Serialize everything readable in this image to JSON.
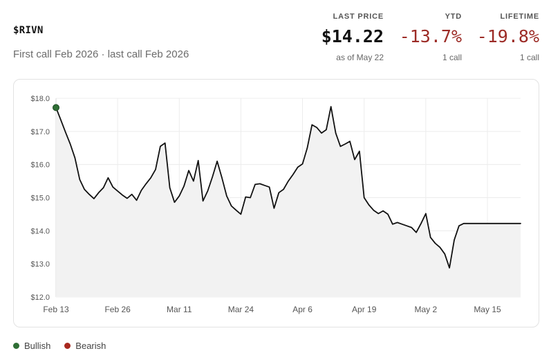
{
  "header": {
    "ticker": "$RIVN",
    "subtitle": "First call Feb 2026 · last call Feb 2026"
  },
  "stats": {
    "last_price": {
      "label": "LAST PRICE",
      "value": "$14.22",
      "note": "as of May 22"
    },
    "ytd": {
      "label": "YTD",
      "value": "-13.7%",
      "note": "1 call"
    },
    "lifetime": {
      "label": "LIFETIME",
      "value": "-19.8%",
      "note": "1 call"
    }
  },
  "legend": [
    {
      "label": "Bullish",
      "color": "#2f6e35"
    },
    {
      "label": "Bearish",
      "color": "#a8291f"
    }
  ],
  "chart_data": {
    "type": "area",
    "xlabel": "",
    "ylabel": "",
    "ylim": [
      12.0,
      18.0
    ],
    "yticks": [
      12.0,
      13.0,
      14.0,
      15.0,
      16.0,
      17.0,
      18.0
    ],
    "ytick_labels": [
      "$12.0",
      "$13.0",
      "$14.0",
      "$15.0",
      "$16.0",
      "$17.0",
      "$18.0"
    ],
    "xlim": [
      "2026-02-13",
      "2026-05-22"
    ],
    "xticks": [
      "2026-02-13",
      "2026-02-26",
      "2026-03-11",
      "2026-03-24",
      "2026-04-06",
      "2026-04-19",
      "2026-05-02",
      "2026-05-15"
    ],
    "xtick_labels": [
      "Feb 13",
      "Feb 26",
      "Mar 11",
      "Mar 24",
      "Apr 6",
      "Apr 19",
      "May 2",
      "May 15"
    ],
    "grid": true,
    "line_color": "#111111",
    "fill_color": "#f2f2f2",
    "series": [
      {
        "x": [
          "2026-02-13",
          "2026-02-14",
          "2026-02-15",
          "2026-02-16",
          "2026-02-17",
          "2026-02-18",
          "2026-02-19",
          "2026-02-20",
          "2026-02-21",
          "2026-02-22",
          "2026-02-23",
          "2026-02-24",
          "2026-02-25",
          "2026-02-26",
          "2026-02-27",
          "2026-02-28",
          "2026-03-01",
          "2026-03-02",
          "2026-03-03",
          "2026-03-04",
          "2026-03-05",
          "2026-03-06",
          "2026-03-07",
          "2026-03-08",
          "2026-03-09",
          "2026-03-10",
          "2026-03-11",
          "2026-03-12",
          "2026-03-13",
          "2026-03-14",
          "2026-03-15",
          "2026-03-16",
          "2026-03-17",
          "2026-03-18",
          "2026-03-19",
          "2026-03-20",
          "2026-03-21",
          "2026-03-22",
          "2026-03-23",
          "2026-03-24",
          "2026-03-25",
          "2026-03-26",
          "2026-03-27",
          "2026-03-28",
          "2026-03-29",
          "2026-03-30",
          "2026-03-31",
          "2026-04-01",
          "2026-04-02",
          "2026-04-03",
          "2026-04-04",
          "2026-04-05",
          "2026-04-06",
          "2026-04-07",
          "2026-04-08",
          "2026-04-09",
          "2026-04-10",
          "2026-04-11",
          "2026-04-12",
          "2026-04-13",
          "2026-04-14",
          "2026-04-15",
          "2026-04-16",
          "2026-04-17",
          "2026-04-18",
          "2026-04-19",
          "2026-04-20",
          "2026-04-21",
          "2026-04-22",
          "2026-04-23",
          "2026-04-24",
          "2026-04-25",
          "2026-04-26",
          "2026-04-27",
          "2026-04-28",
          "2026-04-29",
          "2026-04-30",
          "2026-05-01",
          "2026-05-02",
          "2026-05-03",
          "2026-05-04",
          "2026-05-05",
          "2026-05-06",
          "2026-05-07",
          "2026-05-08",
          "2026-05-09",
          "2026-05-10",
          "2026-05-11",
          "2026-05-12",
          "2026-05-13",
          "2026-05-14",
          "2026-05-15",
          "2026-05-16",
          "2026-05-17",
          "2026-05-18",
          "2026-05-19",
          "2026-05-20",
          "2026-05-21",
          "2026-05-22"
        ],
        "y": [
          17.72,
          17.35,
          16.98,
          16.62,
          16.2,
          15.55,
          15.25,
          15.1,
          14.97,
          15.15,
          15.3,
          15.6,
          15.32,
          15.2,
          15.08,
          14.98,
          15.1,
          14.92,
          15.22,
          15.42,
          15.6,
          15.85,
          16.55,
          16.65,
          15.3,
          14.86,
          15.05,
          15.35,
          15.82,
          15.5,
          16.12,
          14.9,
          15.2,
          15.63,
          16.1,
          15.6,
          15.05,
          14.75,
          14.62,
          14.5,
          15.02,
          15.0,
          15.4,
          15.42,
          15.37,
          15.32,
          14.68,
          15.15,
          15.25,
          15.5,
          15.7,
          15.92,
          16.02,
          16.5,
          17.2,
          17.12,
          16.95,
          17.05,
          17.75,
          16.95,
          16.55,
          16.62,
          16.7,
          16.15,
          16.4,
          15.0,
          14.78,
          14.62,
          14.52,
          14.6,
          14.5,
          14.2,
          14.25,
          14.2,
          14.15,
          14.1,
          13.95,
          14.22,
          14.52,
          13.8,
          13.62,
          13.5,
          13.3,
          12.88,
          13.72,
          14.15,
          14.22,
          14.22,
          14.22,
          14.22,
          14.22,
          14.22,
          14.22,
          14.22,
          14.22,
          14.22,
          14.22,
          14.22,
          14.22
        ]
      }
    ],
    "markers": [
      {
        "x": "2026-02-13",
        "y": 17.72,
        "kind": "Bullish"
      }
    ]
  }
}
